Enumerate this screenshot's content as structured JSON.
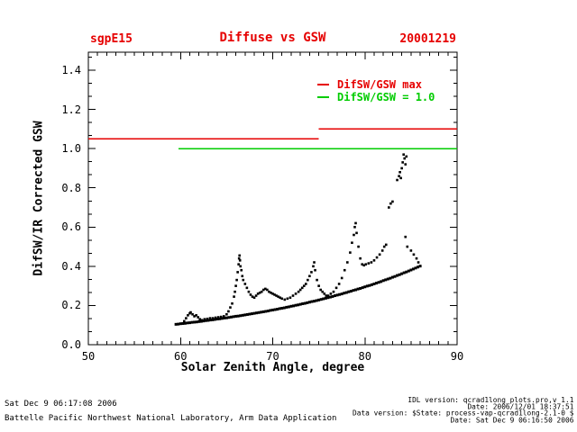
{
  "header": {
    "site": "sgpE15",
    "title": "Diffuse vs GSW",
    "date": "20001219"
  },
  "legend": {
    "items": [
      {
        "label": "DifSW/GSW max",
        "color": "#e60000"
      },
      {
        "label": "DifSW/GSW = 1.0",
        "color": "#00cc00"
      }
    ]
  },
  "footer": {
    "timestamp": "Sat Dec  9 06:17:08 2006",
    "organization": "Battelle Pacific Northwest National Laboratory, Arm Data Application",
    "fine_print": [
      "IDL version: qcrad1long_plots.pro,v 1.1",
      "Date: 2006/12/01 18:37:51",
      "Data version: $State: process-vap-qcrad1long-2.1-0 $",
      "Date: Sat Dec  9 06:16:50 2006"
    ]
  },
  "chart_data": {
    "type": "scatter",
    "title": "Diffuse vs GSW",
    "xlabel": "Solar Zenith Angle, degree",
    "ylabel": "DifSW/IR Corrected GSW",
    "xlim": [
      50,
      90
    ],
    "ylim": [
      0,
      1.492
    ],
    "x_major_ticks": [
      50,
      60,
      70,
      80,
      90
    ],
    "x_minor_step": 1,
    "y_major_ticks": [
      0.0,
      0.2,
      0.4,
      0.6,
      0.8,
      1.0,
      1.2,
      1.4
    ],
    "y_minor_divisions": 3,
    "grid": false,
    "point_color": "#000000",
    "ref_lines": [
      {
        "name": "DifSW/GSW max",
        "color": "#e60000",
        "segments": [
          {
            "x1": 50,
            "x2": 75,
            "y": 1.05
          },
          {
            "x1": 75,
            "x2": 90,
            "y": 1.1
          }
        ]
      },
      {
        "name": "DifSW/GSW = 1.0",
        "color": "#00cc00",
        "segments": [
          {
            "x1": 59.8,
            "x2": 90,
            "y": 1.0
          }
        ]
      }
    ],
    "series": [
      {
        "name": "clear-sky lower branch",
        "encoding": "uniform-x",
        "x_start": 59.5,
        "x_step": 0.25,
        "y": [
          0.104,
          0.105,
          0.107,
          0.108,
          0.109,
          0.111,
          0.112,
          0.114,
          0.115,
          0.116,
          0.118,
          0.119,
          0.121,
          0.123,
          0.124,
          0.126,
          0.127,
          0.129,
          0.131,
          0.132,
          0.134,
          0.136,
          0.137,
          0.139,
          0.141,
          0.143,
          0.145,
          0.146,
          0.148,
          0.15,
          0.152,
          0.154,
          0.156,
          0.158,
          0.16,
          0.162,
          0.164,
          0.166,
          0.168,
          0.17,
          0.172,
          0.175,
          0.177,
          0.179,
          0.181,
          0.184,
          0.186,
          0.188,
          0.191,
          0.193,
          0.196,
          0.198,
          0.201,
          0.203,
          0.206,
          0.209,
          0.211,
          0.214,
          0.217,
          0.22,
          0.222,
          0.225,
          0.228,
          0.231,
          0.234,
          0.237,
          0.24,
          0.243,
          0.246,
          0.25,
          0.253,
          0.256,
          0.259,
          0.263,
          0.266,
          0.27,
          0.273,
          0.277,
          0.28,
          0.284,
          0.287,
          0.291,
          0.295,
          0.299,
          0.302,
          0.306,
          0.31,
          0.314,
          0.318,
          0.322,
          0.327,
          0.331,
          0.335,
          0.339,
          0.344,
          0.348,
          0.353,
          0.357,
          0.362,
          0.367,
          0.371,
          0.376,
          0.381,
          0.386,
          0.391,
          0.396,
          0.401
        ]
      },
      {
        "name": "scattered upper branch",
        "encoding": "points",
        "points": [
          [
            60.4,
            0.12
          ],
          [
            60.6,
            0.135
          ],
          [
            60.8,
            0.15
          ],
          [
            61.0,
            0.16
          ],
          [
            61.1,
            0.165
          ],
          [
            61.3,
            0.155
          ],
          [
            61.5,
            0.145
          ],
          [
            61.7,
            0.15
          ],
          [
            61.9,
            0.14
          ],
          [
            62.1,
            0.13
          ],
          [
            62.3,
            0.125
          ],
          [
            62.6,
            0.13
          ],
          [
            62.9,
            0.132
          ],
          [
            63.2,
            0.135
          ],
          [
            63.5,
            0.135
          ],
          [
            63.8,
            0.138
          ],
          [
            64.1,
            0.14
          ],
          [
            64.4,
            0.142
          ],
          [
            64.7,
            0.145
          ],
          [
            65.0,
            0.155
          ],
          [
            65.2,
            0.17
          ],
          [
            65.4,
            0.19
          ],
          [
            65.6,
            0.21
          ],
          [
            65.8,
            0.245
          ],
          [
            65.9,
            0.27
          ],
          [
            66.0,
            0.3
          ],
          [
            66.1,
            0.33
          ],
          [
            66.2,
            0.37
          ],
          [
            66.3,
            0.41
          ],
          [
            66.35,
            0.44
          ],
          [
            66.4,
            0.455
          ],
          [
            66.45,
            0.43
          ],
          [
            66.5,
            0.4
          ],
          [
            66.6,
            0.38
          ],
          [
            66.7,
            0.35
          ],
          [
            66.8,
            0.33
          ],
          [
            67.0,
            0.31
          ],
          [
            67.2,
            0.29
          ],
          [
            67.4,
            0.27
          ],
          [
            67.6,
            0.255
          ],
          [
            67.8,
            0.245
          ],
          [
            68.0,
            0.24
          ],
          [
            68.2,
            0.25
          ],
          [
            68.4,
            0.26
          ],
          [
            68.6,
            0.265
          ],
          [
            68.8,
            0.27
          ],
          [
            69.0,
            0.28
          ],
          [
            69.2,
            0.285
          ],
          [
            69.4,
            0.28
          ],
          [
            69.6,
            0.27
          ],
          [
            69.8,
            0.265
          ],
          [
            70.0,
            0.26
          ],
          [
            70.2,
            0.255
          ],
          [
            70.4,
            0.25
          ],
          [
            70.6,
            0.245
          ],
          [
            70.8,
            0.24
          ],
          [
            71.0,
            0.235
          ],
          [
            71.3,
            0.23
          ],
          [
            71.6,
            0.235
          ],
          [
            71.9,
            0.24
          ],
          [
            72.2,
            0.25
          ],
          [
            72.5,
            0.26
          ],
          [
            72.8,
            0.27
          ],
          [
            73.0,
            0.28
          ],
          [
            73.2,
            0.29
          ],
          [
            73.4,
            0.3
          ],
          [
            73.6,
            0.31
          ],
          [
            73.8,
            0.33
          ],
          [
            74.0,
            0.35
          ],
          [
            74.2,
            0.37
          ],
          [
            74.4,
            0.4
          ],
          [
            74.5,
            0.42
          ],
          [
            74.6,
            0.38
          ],
          [
            74.8,
            0.33
          ],
          [
            75.0,
            0.3
          ],
          [
            75.2,
            0.28
          ],
          [
            75.4,
            0.27
          ],
          [
            75.6,
            0.26
          ],
          [
            75.8,
            0.25
          ],
          [
            76.0,
            0.25
          ],
          [
            76.3,
            0.26
          ],
          [
            76.6,
            0.27
          ],
          [
            76.9,
            0.29
          ],
          [
            77.2,
            0.31
          ],
          [
            77.5,
            0.34
          ],
          [
            77.8,
            0.38
          ],
          [
            78.1,
            0.42
          ],
          [
            78.4,
            0.47
          ],
          [
            78.6,
            0.52
          ],
          [
            78.8,
            0.56
          ],
          [
            78.9,
            0.6
          ],
          [
            79.0,
            0.62
          ],
          [
            79.1,
            0.57
          ],
          [
            79.3,
            0.5
          ],
          [
            79.5,
            0.44
          ],
          [
            79.7,
            0.41
          ],
          [
            79.9,
            0.405
          ],
          [
            80.1,
            0.41
          ],
          [
            80.4,
            0.415
          ],
          [
            80.7,
            0.42
          ],
          [
            81.0,
            0.43
          ],
          [
            81.3,
            0.445
          ],
          [
            81.6,
            0.46
          ],
          [
            81.9,
            0.48
          ],
          [
            82.1,
            0.5
          ],
          [
            82.3,
            0.51
          ],
          [
            82.6,
            0.7
          ],
          [
            82.8,
            0.72
          ],
          [
            83.0,
            0.73
          ],
          [
            83.5,
            0.84
          ],
          [
            83.7,
            0.86
          ],
          [
            83.8,
            0.88
          ],
          [
            83.9,
            0.85
          ],
          [
            84.0,
            0.9
          ],
          [
            84.1,
            0.93
          ],
          [
            84.2,
            0.97
          ],
          [
            84.3,
            0.95
          ],
          [
            84.4,
            0.92
          ],
          [
            84.5,
            0.96
          ],
          [
            84.4,
            0.55
          ],
          [
            84.6,
            0.5
          ],
          [
            85.0,
            0.48
          ],
          [
            85.3,
            0.46
          ],
          [
            85.6,
            0.44
          ],
          [
            85.8,
            0.42
          ]
        ]
      }
    ]
  }
}
